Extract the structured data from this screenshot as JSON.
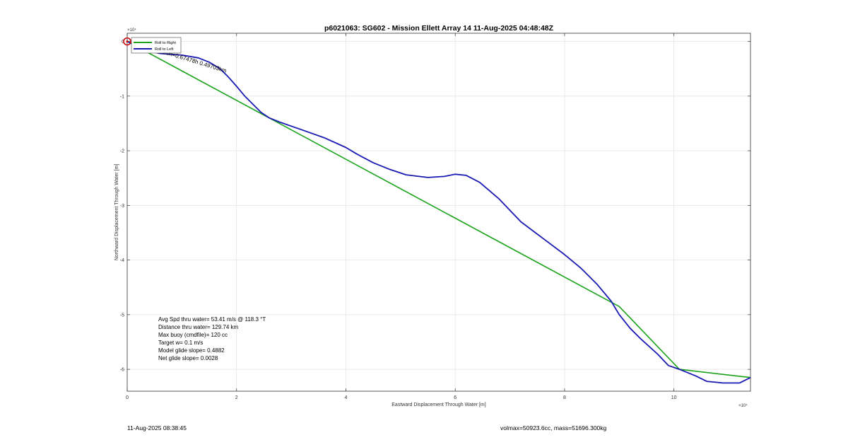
{
  "chart_data": {
    "type": "line",
    "title": "p6021063: SG602 - Mission Ellett Array 14 11-Aug-2025 04:48:48Z",
    "xlabel": "Eastward Displacement Through Water [m]",
    "ylabel": "Northward Displacement Through Water [m]",
    "x_exponent_label": "×10⁴",
    "y_exponent_label": "×10⁴",
    "xlim": [
      0,
      11.4
    ],
    "ylim": [
      -6.4,
      0.15
    ],
    "xticks": [
      0,
      2,
      4,
      6,
      8,
      10
    ],
    "yticks": [
      0,
      -1,
      -2,
      -3,
      -4,
      -5,
      -6
    ],
    "xtick_labels": [
      "0",
      "2",
      "4",
      "6",
      "8",
      "10"
    ],
    "ytick_labels": [
      "0",
      "-1",
      "-2",
      "-3",
      "-4",
      "-5",
      "-6"
    ],
    "scale_note": "axis values shown in units of 10^4 m",
    "grid": true,
    "legend": {
      "placement": "top-left",
      "entries": [
        {
          "label": "Roll to Right",
          "color": "#1aa31a"
        },
        {
          "label": "Roll to Left",
          "color": "#1a1ab3"
        }
      ]
    },
    "series": [
      {
        "name": "Roll to Right",
        "color": "#1aa31a",
        "x": [
          0,
          9.0,
          10.1,
          11.4
        ],
        "y": [
          0,
          -4.85,
          -6.0,
          -6.15
        ]
      },
      {
        "name": "Roll to Left",
        "color": "#1a1ab3",
        "x": [
          0,
          0.3,
          0.6,
          1.0,
          1.3,
          1.5,
          1.7,
          1.85,
          2.0,
          2.15,
          2.3,
          2.45,
          2.6,
          2.8,
          3.2,
          3.6,
          4.0,
          4.2,
          4.5,
          4.8,
          5.1,
          5.5,
          5.8,
          6.0,
          6.2,
          6.45,
          6.8,
          7.2,
          7.6,
          8.0,
          8.3,
          8.6,
          8.85,
          9.0,
          9.2,
          9.4,
          9.7,
          9.9,
          10.1,
          10.4,
          10.6,
          10.9,
          11.2,
          11.4
        ],
        "y": [
          0,
          -0.15,
          -0.22,
          -0.25,
          -0.3,
          -0.38,
          -0.5,
          -0.65,
          -0.82,
          -1.0,
          -1.15,
          -1.3,
          -1.4,
          -1.48,
          -1.62,
          -1.76,
          -1.94,
          -2.06,
          -2.22,
          -2.34,
          -2.44,
          -2.49,
          -2.47,
          -2.43,
          -2.45,
          -2.58,
          -2.88,
          -3.3,
          -3.6,
          -3.9,
          -4.15,
          -4.45,
          -4.75,
          -5.0,
          -5.25,
          -5.45,
          -5.72,
          -5.93,
          -6.0,
          -6.12,
          -6.22,
          -6.25,
          -6.25,
          -6.15
        ]
      }
    ],
    "track_marker": {
      "x": 0.0,
      "y": 0.0,
      "color": "#cc0000"
    },
    "track_annotation": "1.0h=0.5km 1.0h=0.67478h 0.49703km",
    "annotations": [
      "Avg Spd thru water= 53.41 m/s @ 118.3 °T",
      "Distance thru water= 129.74 km",
      "Max buoy (cmdfile)= 120 cc",
      "Target w= 0.1 m/s",
      "Model glide slope= 0.4882",
      "Net glide slope= 0.0028"
    ]
  },
  "footer": {
    "left": "11-Aug-2025 08:38:45",
    "right": "volmax=50923.6cc, mass=51696.300kg"
  }
}
